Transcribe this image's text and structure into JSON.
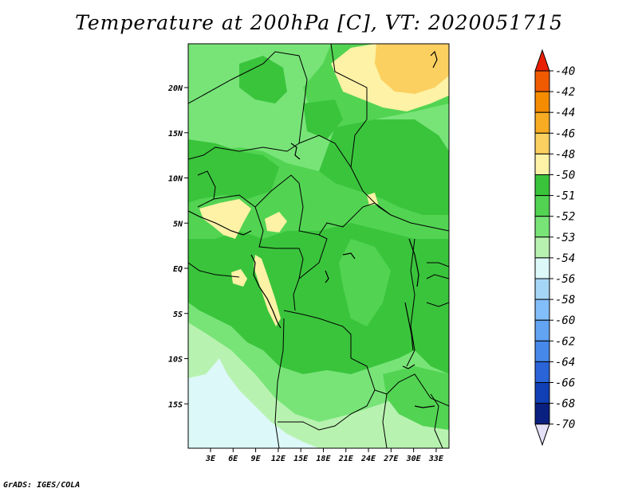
{
  "title": "Temperature at 200hPa [C], VT: 2020051715",
  "credit": "GrADS: IGES/COLA",
  "map": {
    "lat_labels": [
      "20N",
      "15N",
      "10N",
      "5N",
      "EQ",
      "5S",
      "10S",
      "15S"
    ],
    "lat_values": [
      20,
      15,
      10,
      5,
      0,
      -5,
      -10,
      -15
    ],
    "lon_labels": [
      "3E",
      "6E",
      "9E",
      "12E",
      "15E",
      "18E",
      "21E",
      "24E",
      "27E",
      "30E",
      "33E"
    ],
    "lon_values": [
      3,
      6,
      9,
      12,
      15,
      18,
      21,
      24,
      27,
      30,
      33
    ]
  },
  "colorbar": {
    "labels": [
      "-40",
      "-42",
      "-44",
      "-46",
      "-48",
      "-50",
      "-51",
      "-52",
      "-53",
      "-54",
      "-56",
      "-58",
      "-60",
      "-62",
      "-64",
      "-66",
      "-68",
      "-70"
    ],
    "colors": [
      "#e82000",
      "#f05a00",
      "#f58c00",
      "#f8ac24",
      "#fbd060",
      "#fdf2a6",
      "#3ac43c",
      "#52d452",
      "#78e478",
      "#b8f2b0",
      "#dcf8f8",
      "#a6d6f6",
      "#82befa",
      "#62a4f2",
      "#4688e8",
      "#2a64d8",
      "#1040b4",
      "#0a2080",
      "#e4e0f8"
    ]
  },
  "colors": {
    "green_dark": "#3ac43c",
    "green_mid": "#52d452",
    "green_light": "#78e478",
    "green_pale": "#b8f2b0",
    "cyan_pale": "#dcf8f8",
    "yellow_pale": "#fdf2a6",
    "yellow": "#fbd060"
  }
}
